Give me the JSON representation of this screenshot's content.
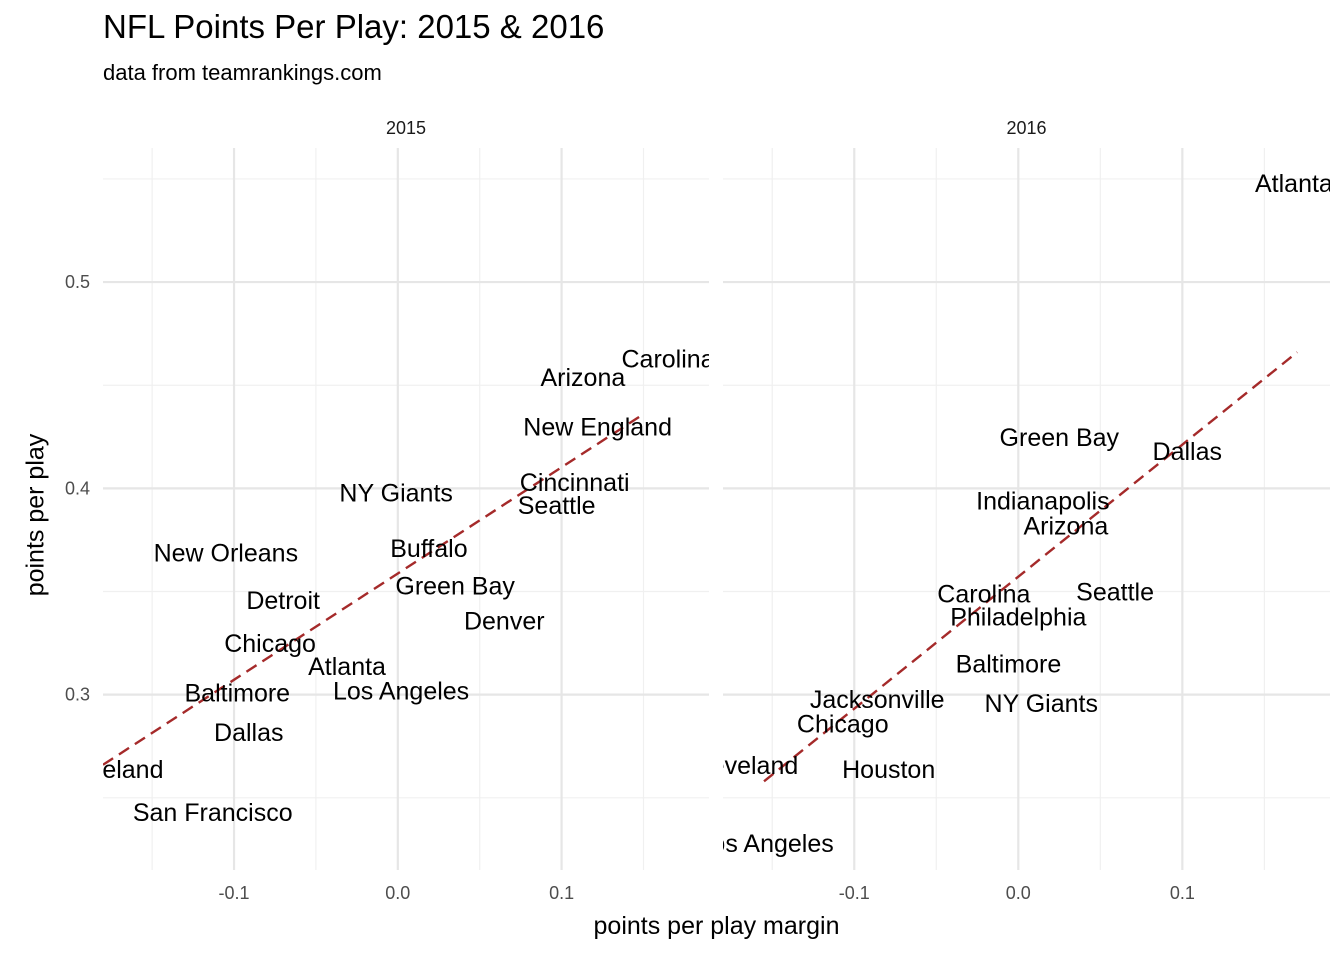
{
  "chart_data": {
    "type": "scatter",
    "title": "NFL Points Per Play: 2015 & 2016",
    "subtitle": "data from teamrankings.com",
    "xlabel": "points per play margin",
    "ylabel": "points per play",
    "xlim": [
      -0.18,
      0.19
    ],
    "ylim": [
      0.215,
      0.565
    ],
    "x_ticks": [
      -0.1,
      0.0,
      0.1
    ],
    "x_tick_labels": [
      "-0.1",
      "0.0",
      "0.1"
    ],
    "y_ticks": [
      0.3,
      0.4,
      0.5
    ],
    "y_tick_labels": [
      "0.3",
      "0.4",
      "0.5"
    ],
    "grid": true,
    "fit_color": "#a52a2a",
    "facets": [
      {
        "label": "2015",
        "fit_line": [
          [
            -0.18,
            0.266
          ],
          [
            0.15,
            0.436
          ]
        ],
        "points": [
          {
            "label": "Carolina",
            "x": 0.165,
            "y": 0.463
          },
          {
            "label": "Arizona",
            "x": 0.113,
            "y": 0.454
          },
          {
            "label": "New England",
            "x": 0.122,
            "y": 0.43
          },
          {
            "label": "Cincinnati",
            "x": 0.108,
            "y": 0.403
          },
          {
            "label": "Seattle",
            "x": 0.097,
            "y": 0.392
          },
          {
            "label": "NY Giants",
            "x": -0.001,
            "y": 0.398
          },
          {
            "label": "New Orleans",
            "x": -0.105,
            "y": 0.369
          },
          {
            "label": "Buffalo",
            "x": 0.019,
            "y": 0.371
          },
          {
            "label": "Green Bay",
            "x": 0.035,
            "y": 0.353
          },
          {
            "label": "Detroit",
            "x": -0.07,
            "y": 0.346
          },
          {
            "label": "Denver",
            "x": 0.065,
            "y": 0.336
          },
          {
            "label": "Chicago",
            "x": -0.078,
            "y": 0.325
          },
          {
            "label": "Atlanta",
            "x": -0.031,
            "y": 0.314
          },
          {
            "label": "Baltimore",
            "x": -0.098,
            "y": 0.301
          },
          {
            "label": "Los Angeles",
            "x": 0.002,
            "y": 0.302
          },
          {
            "label": "Dallas",
            "x": -0.091,
            "y": 0.282
          },
          {
            "label": "Cleveland",
            "x": -0.177,
            "y": 0.264
          },
          {
            "label": "San Francisco",
            "x": -0.113,
            "y": 0.243
          }
        ]
      },
      {
        "label": "2016",
        "fit_line": [
          [
            -0.155,
            0.258
          ],
          [
            0.17,
            0.466
          ]
        ],
        "points": [
          {
            "label": "Atlanta",
            "x": 0.168,
            "y": 0.548
          },
          {
            "label": "Green Bay",
            "x": 0.025,
            "y": 0.425
          },
          {
            "label": "Dallas",
            "x": 0.103,
            "y": 0.418
          },
          {
            "label": "Indianapolis",
            "x": 0.015,
            "y": 0.394
          },
          {
            "label": "Arizona",
            "x": 0.029,
            "y": 0.382
          },
          {
            "label": "Carolina",
            "x": -0.021,
            "y": 0.349
          },
          {
            "label": "Seattle",
            "x": 0.059,
            "y": 0.35
          },
          {
            "label": "Philadelphia",
            "x": 0.0,
            "y": 0.338
          },
          {
            "label": "Baltimore",
            "x": -0.006,
            "y": 0.315
          },
          {
            "label": "Jacksonville",
            "x": -0.086,
            "y": 0.298
          },
          {
            "label": "NY Giants",
            "x": 0.014,
            "y": 0.296
          },
          {
            "label": "Chicago",
            "x": -0.107,
            "y": 0.286
          },
          {
            "label": "Cleveland",
            "x": -0.168,
            "y": 0.266
          },
          {
            "label": "Houston",
            "x": -0.079,
            "y": 0.264
          },
          {
            "label": "Los Angeles",
            "x": -0.154,
            "y": 0.228
          }
        ]
      }
    ]
  }
}
